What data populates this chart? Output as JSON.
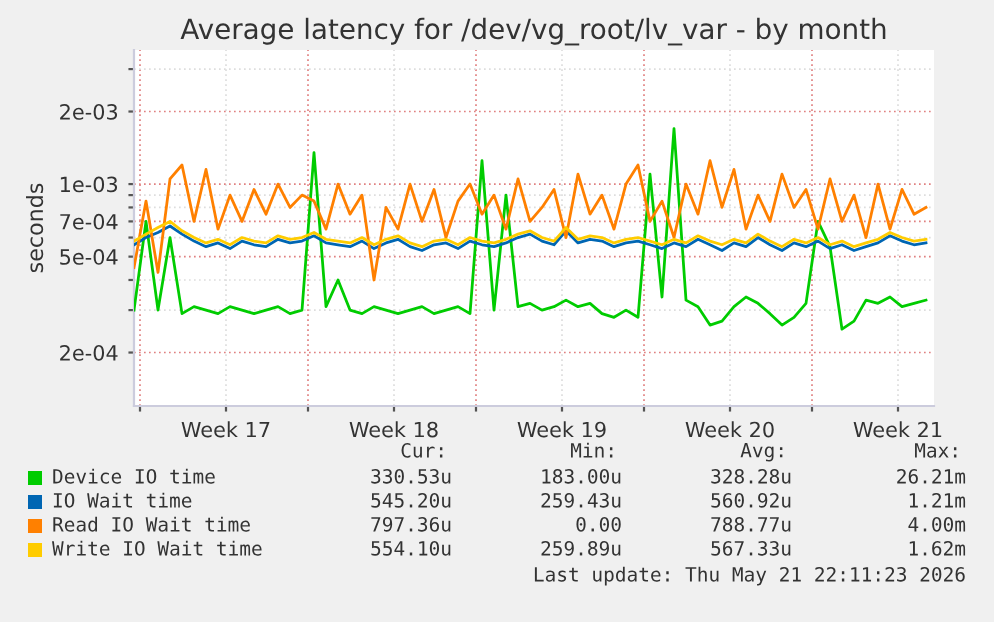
{
  "chart_data": {
    "type": "line",
    "title": "Average latency for /dev/vg_root/lv_var - by month",
    "ylabel": "seconds",
    "log": "y",
    "grid": true,
    "legend": "bottom",
    "marker": "none",
    "line_style": "solid",
    "xlim": [
      "2026-04-18T14:00",
      "2026-05-21T22:00"
    ],
    "xticks": [
      {
        "value": "2026-04-18T20:00",
        "label": null
      },
      {
        "value": "2026-04-22T10:00",
        "label": "Week 17"
      },
      {
        "value": "2026-04-25T20:00",
        "label": null
      },
      {
        "value": "2026-04-29T10:00",
        "label": "Week 18"
      },
      {
        "value": "2026-05-02T20:00",
        "label": null
      },
      {
        "value": "2026-05-06T10:00",
        "label": "Week 19"
      },
      {
        "value": "2026-05-09T20:00",
        "label": null
      },
      {
        "value": "2026-05-13T10:00",
        "label": "Week 20"
      },
      {
        "value": "2026-05-16T20:00",
        "label": null
      },
      {
        "value": "2026-05-20T10:00",
        "label": "Week 21"
      }
    ],
    "ylim": [
      0.00012,
      0.0036
    ],
    "yticks": [
      {
        "value": 0.0002,
        "label": "2e-04"
      },
      {
        "value": 0.0003,
        "label": null
      },
      {
        "value": 0.0004,
        "label": null
      },
      {
        "value": 0.0005,
        "label": "5e-04"
      },
      {
        "value": 0.0006,
        "label": null
      },
      {
        "value": 0.0007,
        "label": "7e-04"
      },
      {
        "value": 0.0008,
        "label": null
      },
      {
        "value": 0.0009,
        "label": null
      },
      {
        "value": 0.001,
        "label": "1e-03"
      },
      {
        "value": 0.002,
        "label": "2e-03"
      },
      {
        "value": 0.003,
        "label": null
      }
    ],
    "x": [
      "2026-04-18T14:00",
      "2026-04-19T02:00",
      "2026-04-19T14:00",
      "2026-04-20T02:00",
      "2026-04-20T14:00",
      "2026-04-21T02:00",
      "2026-04-21T14:00",
      "2026-04-22T02:00",
      "2026-04-22T14:00",
      "2026-04-23T02:00",
      "2026-04-23T14:00",
      "2026-04-24T02:00",
      "2026-04-24T14:00",
      "2026-04-25T02:00",
      "2026-04-25T14:00",
      "2026-04-26T02:00",
      "2026-04-26T14:00",
      "2026-04-27T02:00",
      "2026-04-27T14:00",
      "2026-04-28T02:00",
      "2026-04-28T14:00",
      "2026-04-29T02:00",
      "2026-04-29T14:00",
      "2026-04-30T02:00",
      "2026-04-30T14:00",
      "2026-05-01T02:00",
      "2026-05-01T14:00",
      "2026-05-02T02:00",
      "2026-05-02T14:00",
      "2026-05-03T02:00",
      "2026-05-03T14:00",
      "2026-05-04T02:00",
      "2026-05-04T14:00",
      "2026-05-05T02:00",
      "2026-05-05T14:00",
      "2026-05-06T02:00",
      "2026-05-06T14:00",
      "2026-05-07T02:00",
      "2026-05-07T14:00",
      "2026-05-08T02:00",
      "2026-05-08T14:00",
      "2026-05-09T02:00",
      "2026-05-09T14:00",
      "2026-05-10T02:00",
      "2026-05-10T14:00",
      "2026-05-11T02:00",
      "2026-05-11T14:00",
      "2026-05-12T02:00",
      "2026-05-12T14:00",
      "2026-05-13T02:00",
      "2026-05-13T14:00",
      "2026-05-14T02:00",
      "2026-05-14T14:00",
      "2026-05-15T02:00",
      "2026-05-15T14:00",
      "2026-05-16T02:00",
      "2026-05-16T14:00",
      "2026-05-17T02:00",
      "2026-05-17T14:00",
      "2026-05-18T02:00",
      "2026-05-18T14:00",
      "2026-05-19T02:00",
      "2026-05-19T14:00",
      "2026-05-20T02:00",
      "2026-05-20T14:00",
      "2026-05-21T02:00",
      "2026-05-21T14:00"
    ],
    "series": [
      {
        "name": "Device IO time",
        "color": "#00cc00",
        "values": [
          0.0003,
          0.0007,
          0.0003,
          0.0006,
          0.00029,
          0.00031,
          0.0003,
          0.00029,
          0.00031,
          0.0003,
          0.00029,
          0.0003,
          0.00031,
          0.00029,
          0.0003,
          0.00135,
          0.00031,
          0.0004,
          0.0003,
          0.00029,
          0.00031,
          0.0003,
          0.00029,
          0.0003,
          0.00031,
          0.00029,
          0.0003,
          0.00031,
          0.00029,
          0.00125,
          0.0003,
          0.0009,
          0.00031,
          0.00032,
          0.0003,
          0.00031,
          0.00033,
          0.00031,
          0.00032,
          0.00029,
          0.00028,
          0.0003,
          0.00028,
          0.0011,
          0.00034,
          0.0017,
          0.00033,
          0.00031,
          0.00026,
          0.00027,
          0.00031,
          0.00034,
          0.00032,
          0.00029,
          0.00026,
          0.00028,
          0.00032,
          0.0007,
          0.00055,
          0.00025,
          0.00027,
          0.00033,
          0.00032,
          0.00034,
          0.00031,
          0.00032,
          0.00033
        ]
      },
      {
        "name": "IO Wait time",
        "color": "#0066b3",
        "values": [
          0.00056,
          0.0006,
          0.00063,
          0.00067,
          0.00062,
          0.00058,
          0.00055,
          0.00057,
          0.00054,
          0.00058,
          0.00056,
          0.00055,
          0.00059,
          0.00057,
          0.00058,
          0.00061,
          0.00057,
          0.00056,
          0.00055,
          0.00058,
          0.00054,
          0.00057,
          0.00059,
          0.00055,
          0.00053,
          0.00056,
          0.00057,
          0.00054,
          0.00058,
          0.00056,
          0.00055,
          0.00057,
          0.0006,
          0.00062,
          0.00058,
          0.00056,
          0.00064,
          0.00057,
          0.00059,
          0.00058,
          0.00055,
          0.00057,
          0.00058,
          0.00056,
          0.00054,
          0.00057,
          0.00055,
          0.00059,
          0.00056,
          0.00053,
          0.00057,
          0.00055,
          0.0006,
          0.00056,
          0.00053,
          0.00057,
          0.00055,
          0.00058,
          0.00054,
          0.00056,
          0.00053,
          0.00055,
          0.00057,
          0.00061,
          0.00058,
          0.00056,
          0.00057
        ]
      },
      {
        "name": "Read IO Wait time",
        "color": "#ff8000",
        "values": [
          0.00045,
          0.00085,
          0.00043,
          0.00105,
          0.0012,
          0.0007,
          0.00115,
          0.00065,
          0.0009,
          0.0007,
          0.00095,
          0.00075,
          0.001,
          0.0008,
          0.0009,
          0.00085,
          0.00065,
          0.001,
          0.00075,
          0.0009,
          0.0004,
          0.0008,
          0.00065,
          0.001,
          0.0007,
          0.00095,
          0.0006,
          0.00085,
          0.001,
          0.00075,
          0.0009,
          0.00065,
          0.00105,
          0.0007,
          0.0008,
          0.00095,
          0.0006,
          0.0011,
          0.00075,
          0.0009,
          0.00065,
          0.001,
          0.0012,
          0.0007,
          0.00085,
          0.0006,
          0.001,
          0.00075,
          0.00125,
          0.0008,
          0.00115,
          0.00065,
          0.0009,
          0.0007,
          0.0011,
          0.0008,
          0.00095,
          0.00065,
          0.00105,
          0.0007,
          0.0009,
          0.0006,
          0.001,
          0.00065,
          0.00095,
          0.00075,
          0.0008
        ]
      },
      {
        "name": "Write IO Wait time",
        "color": "#ffcc00",
        "values": [
          0.00058,
          0.00062,
          0.00066,
          0.0007,
          0.00064,
          0.0006,
          0.00057,
          0.00059,
          0.00056,
          0.0006,
          0.00058,
          0.00057,
          0.00061,
          0.00059,
          0.0006,
          0.00063,
          0.00059,
          0.00058,
          0.00057,
          0.0006,
          0.00056,
          0.00059,
          0.00061,
          0.00057,
          0.00055,
          0.00058,
          0.00059,
          0.00056,
          0.0006,
          0.00058,
          0.00057,
          0.00059,
          0.00062,
          0.00064,
          0.0006,
          0.00058,
          0.00066,
          0.00059,
          0.00061,
          0.0006,
          0.00057,
          0.00059,
          0.0006,
          0.00058,
          0.00056,
          0.00059,
          0.00057,
          0.00061,
          0.00058,
          0.00056,
          0.00059,
          0.00057,
          0.00062,
          0.00058,
          0.00055,
          0.00059,
          0.00057,
          0.0006,
          0.00056,
          0.00058,
          0.00055,
          0.00057,
          0.00059,
          0.00063,
          0.0006,
          0.00058,
          0.00059
        ]
      }
    ],
    "annotations": [
      "Cur:",
      "Min:",
      "Avg:",
      "Max:",
      "330.53u",
      "183.00u",
      "328.28u",
      "26.21m",
      "545.20u",
      "259.43u",
      "560.92u",
      "1.21m",
      "797.36u",
      "0.00",
      "788.77u",
      "4.00m",
      "554.10u",
      "259.89u",
      "567.33u",
      "1.62m",
      "Last update: Thu May 21 22:11:23 2026"
    ]
  }
}
